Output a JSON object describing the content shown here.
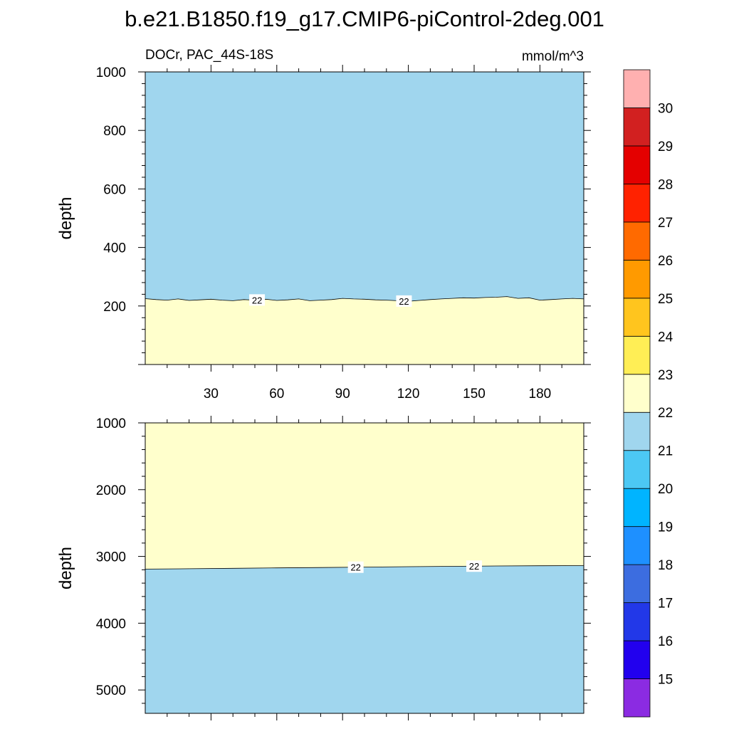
{
  "figure": {
    "title": "b.e21.B1850.f19_g17.CMIP6-piControl-2deg.001",
    "left_subtitle": "DOCr, PAC_44S-18S",
    "right_subtitle": "mmol/m^3"
  },
  "chart_data": [
    {
      "type": "contour",
      "panel": "upper",
      "title": "DOCr, PAC_44S-18S",
      "units": "mmol/m^3",
      "xlabel": "",
      "ylabel": "depth",
      "xlim": [
        0,
        200
      ],
      "ylim": [
        1000,
        0
      ],
      "xticks": [
        30,
        60,
        90,
        120,
        150,
        180
      ],
      "yticks": [
        200,
        400,
        600,
        800,
        1000
      ],
      "x_tick_labels_shown": true,
      "regions": [
        {
          "range": "21-22",
          "color": "#a0d6ee",
          "position": "above contour"
        },
        {
          "range": "22-23",
          "color": "#ffffcc",
          "position": "below contour"
        }
      ],
      "contour": {
        "level": 22,
        "x": [
          0,
          5,
          10,
          15,
          20,
          25,
          30,
          35,
          40,
          45,
          50,
          55,
          60,
          65,
          70,
          75,
          80,
          85,
          90,
          95,
          100,
          105,
          110,
          115,
          120,
          125,
          130,
          135,
          140,
          145,
          150,
          155,
          160,
          165,
          170,
          175,
          180,
          185,
          190,
          195,
          200
        ],
        "depth": [
          225,
          222,
          220,
          224,
          219,
          221,
          223,
          220,
          218,
          222,
          220,
          223,
          219,
          221,
          224,
          218,
          220,
          222,
          226,
          224,
          223,
          221,
          220,
          218,
          216,
          219,
          222,
          224,
          226,
          228,
          227,
          229,
          230,
          232,
          226,
          228,
          220,
          222,
          224,
          226,
          224
        ],
        "labels": [
          {
            "x": 51,
            "text": "22"
          },
          {
            "x": 118,
            "text": "22"
          }
        ]
      }
    },
    {
      "type": "contour",
      "panel": "lower",
      "xlabel": "",
      "ylabel": "depth",
      "xlim": [
        0,
        200
      ],
      "ylim": [
        1000,
        5350
      ],
      "yticks": [
        1000,
        2000,
        3000,
        4000,
        5000
      ],
      "x_tick_labels_shown": false,
      "regions": [
        {
          "range": "22-23",
          "color": "#ffffcc",
          "position": "above contour"
        },
        {
          "range": "21-22",
          "color": "#a0d6ee",
          "position": "below contour"
        }
      ],
      "contour": {
        "level": 22,
        "x": [
          0,
          20,
          40,
          60,
          80,
          100,
          120,
          140,
          160,
          180,
          200
        ],
        "depth": [
          3190,
          3185,
          3178,
          3172,
          3166,
          3160,
          3154,
          3148,
          3143,
          3140,
          3138
        ],
        "labels": [
          {
            "x": 96,
            "text": "22"
          },
          {
            "x": 150,
            "text": "22"
          }
        ]
      }
    }
  ],
  "colorbar": {
    "labels": [
      "15",
      "16",
      "17",
      "18",
      "19",
      "20",
      "21",
      "22",
      "23",
      "24",
      "25",
      "26",
      "27",
      "28",
      "29",
      "30"
    ],
    "colors": [
      "#8b2be2",
      "#2200ee",
      "#2238e8",
      "#3c6de0",
      "#1e90ff",
      "#00b4ff",
      "#4cc8f4",
      "#a0d6ee",
      "#ffffcc",
      "#ffee55",
      "#ffc51e",
      "#ff9a00",
      "#ff6a00",
      "#ff2200",
      "#e40000",
      "#d22020",
      "#ffb0b0"
    ]
  }
}
